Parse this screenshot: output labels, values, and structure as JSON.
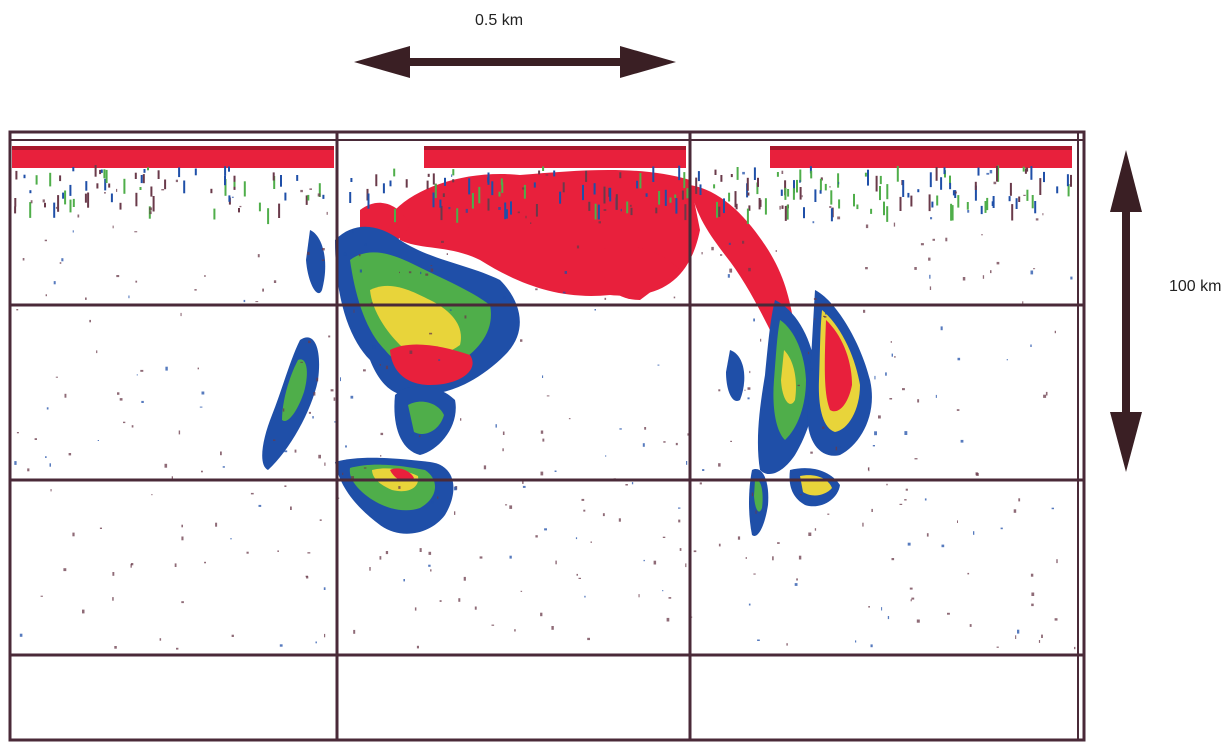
{
  "scale_bars": {
    "horizontal": {
      "label": "0.5 km"
    },
    "vertical": {
      "label": "100 km"
    }
  },
  "colors": {
    "background": "#ffffff",
    "grid_line": "#4a2a38",
    "arrow": "#3a1f24",
    "echo_strong": "#e8203c",
    "echo_medium": "#e8d43a",
    "echo_moderate": "#4fae4a",
    "echo_weak": "#1f4fa8",
    "speckle": "#6a3a4a"
  },
  "plot": {
    "type": "echogram",
    "grid": true,
    "vertical_grid_lines": 2,
    "horizontal_grid_lines": 3
  }
}
